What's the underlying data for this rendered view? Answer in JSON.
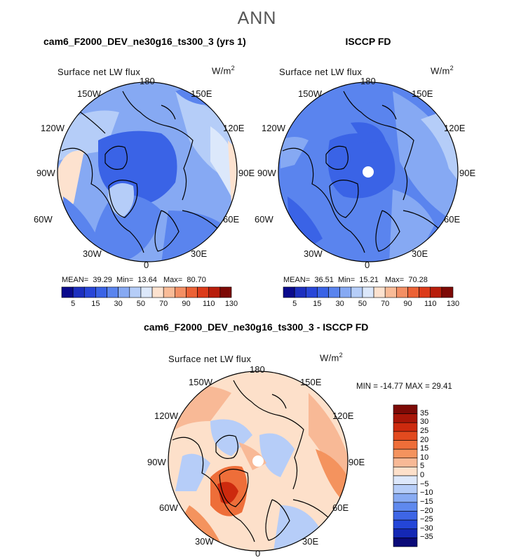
{
  "figure": {
    "season": "ANN"
  },
  "panels": [
    {
      "title": "cam6_F2000_DEV_ne30g16_ts300_3 (yrs 1)",
      "variable": "Surface net LW flux",
      "units": "W/m",
      "units_sup": "2",
      "stats": {
        "mean_label": "MEAN=",
        "mean": "39.29",
        "min_label": "Min=",
        "min": "13.64",
        "max_label": "Max=",
        "max": "80.70"
      }
    },
    {
      "title": "ISCCP FD",
      "variable": "Surface net LW flux",
      "units": "W/m",
      "units_sup": "2",
      "stats": {
        "mean_label": "MEAN=",
        "mean": "36.51",
        "min_label": "Min=",
        "min": "15.21",
        "max_label": "Max=",
        "max": "70.28"
      }
    },
    {
      "title": "cam6_F2000_DEV_ne30g16_ts300_3 - ISCCP FD",
      "variable": "Surface net LW flux",
      "units": "W/m",
      "units_sup": "2",
      "stats_line": "MIN = -14.77 MAX =  29.41"
    }
  ],
  "lon_labels": [
    "180",
    "150E",
    "120E",
    "90E",
    "60E",
    "30E",
    "0",
    "30W",
    "60W",
    "90W",
    "120W",
    "150W"
  ],
  "chart_data": [
    {
      "type": "heatmap",
      "projection": "north polar stereographic",
      "title": "cam6_F2000_DEV_ne30g16_ts300_3 (yrs 1)",
      "variable": "Surface net LW flux",
      "units": "W/m2",
      "mean": 39.29,
      "min": 13.64,
      "max": 80.7,
      "colorbar_levels": [
        5,
        10,
        15,
        20,
        30,
        40,
        50,
        60,
        70,
        80,
        90,
        100,
        110,
        120,
        130
      ],
      "colorbar_tick_labels": [
        "5",
        "15",
        "30",
        "50",
        "70",
        "90",
        "110",
        "130"
      ]
    },
    {
      "type": "heatmap",
      "projection": "north polar stereographic",
      "title": "ISCCP FD",
      "variable": "Surface net LW flux",
      "units": "W/m2",
      "mean": 36.51,
      "min": 15.21,
      "max": 70.28,
      "colorbar_levels": [
        5,
        10,
        15,
        20,
        30,
        40,
        50,
        60,
        70,
        80,
        90,
        100,
        110,
        120,
        130
      ],
      "colorbar_tick_labels": [
        "5",
        "15",
        "30",
        "50",
        "70",
        "90",
        "110",
        "130"
      ]
    },
    {
      "type": "heatmap",
      "projection": "north polar stereographic",
      "title": "cam6_F2000_DEV_ne30g16_ts300_3 - ISCCP FD",
      "variable": "Surface net LW flux",
      "units": "W/m2",
      "min": -14.77,
      "max": 29.41,
      "colorbar_levels": [
        -35,
        -30,
        -25,
        -20,
        -15,
        -10,
        -5,
        0,
        5,
        10,
        15,
        20,
        25,
        30,
        35
      ],
      "colorbar_tick_labels": [
        "35",
        "30",
        "25",
        "20",
        "15",
        "10",
        "5",
        "0",
        "−5",
        "−10",
        "−15",
        "−20",
        "−25",
        "−30",
        "−35"
      ]
    }
  ],
  "colors": {
    "abs_scale": [
      "#0a0a8c",
      "#1c2fbf",
      "#2846d8",
      "#3a63e6",
      "#5a84ee",
      "#86a9f3",
      "#b5cdf8",
      "#dce8fb",
      "#fde2cf",
      "#f9bb97",
      "#f38f64",
      "#ec6236",
      "#dc3b1a",
      "#b81e0c",
      "#7d0a06"
    ],
    "diff_scale": [
      "#7d0a06",
      "#a81608",
      "#cd2a0e",
      "#e24a1f",
      "#ee6e39",
      "#f4935e",
      "#f8b996",
      "#fde0ca",
      "#dde8fb",
      "#b6cdf8",
      "#88abf3",
      "#5f89ee",
      "#3e66e6",
      "#2446d8",
      "#1428b5",
      "#0a0a78"
    ]
  }
}
